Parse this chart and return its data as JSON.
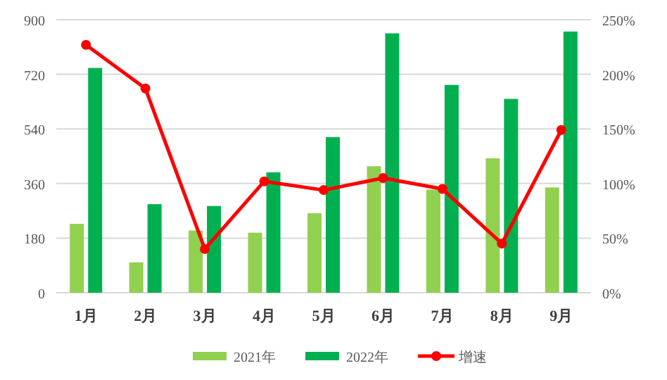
{
  "chart_data": {
    "type": "bar",
    "categories": [
      "1月",
      "2月",
      "3月",
      "4月",
      "5月",
      "6月",
      "7月",
      "8月",
      "9月"
    ],
    "series": [
      {
        "name": "2021年",
        "color": "#92d050",
        "values": [
          227,
          100,
          205,
          198,
          262,
          417,
          340,
          443,
          347
        ]
      },
      {
        "name": "2022年",
        "color": "#00b050",
        "values": [
          741,
          292,
          286,
          397,
          513,
          855,
          685,
          639,
          861
        ]
      },
      {
        "name": "增速",
        "type": "line",
        "axis": "y2",
        "color": "#ff0000",
        "marker": "circle",
        "values": [
          227,
          187,
          40,
          102,
          94,
          105,
          95,
          45,
          149
        ]
      }
    ],
    "ylim": [
      0,
      900
    ],
    "yticks": [
      0,
      180,
      360,
      540,
      720,
      900
    ],
    "y2lim": [
      0,
      250
    ],
    "y2ticks": [
      {
        "value": 0,
        "label": "0%"
      },
      {
        "value": 50,
        "label": "50%"
      },
      {
        "value": 100,
        "label": "100%"
      },
      {
        "value": 150,
        "label": "150%"
      },
      {
        "value": 200,
        "label": "200%"
      },
      {
        "value": 250,
        "label": "250%"
      }
    ],
    "grid": "y",
    "legend": "bottom"
  }
}
